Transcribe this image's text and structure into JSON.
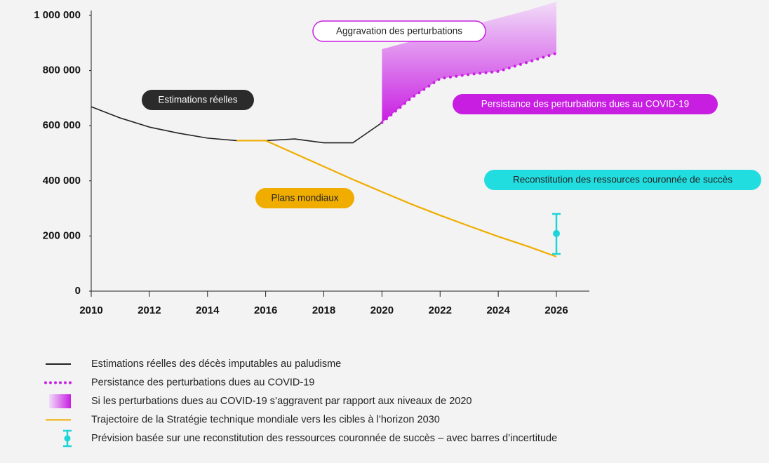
{
  "chart_data": {
    "type": "line",
    "x": [
      2010,
      2011,
      2012,
      2013,
      2014,
      2015,
      2016,
      2017,
      2018,
      2019,
      2020,
      2021,
      2022,
      2023,
      2024,
      2025,
      2026
    ],
    "xlim": [
      2010,
      2026
    ],
    "xticks": [
      2010,
      2012,
      2014,
      2016,
      2018,
      2020,
      2022,
      2024,
      2026
    ],
    "ylim": [
      0,
      1000000
    ],
    "yticks": [
      0,
      {
        "value": 200000,
        "label": "200 000"
      },
      {
        "value": 400000,
        "label": "400 000"
      },
      {
        "value": 600000,
        "label": "600 000"
      },
      {
        "value": 800000,
        "label": "800 000"
      },
      {
        "value": 1000000,
        "label": "1 000 000"
      }
    ],
    "series": [
      {
        "name": "Estimations réelles des décès imputables au paludisme",
        "style": "solid",
        "color": "#222222",
        "values": [
          669000,
          628000,
          595000,
          573000,
          555000,
          546000,
          546000,
          552000,
          538000,
          538000,
          611000,
          null,
          null,
          null,
          null,
          null,
          null
        ]
      },
      {
        "name": "Persistance des perturbations dues au COVID-19",
        "style": "dotted",
        "color": "#c81ee2",
        "values": [
          null,
          null,
          null,
          null,
          null,
          null,
          null,
          null,
          null,
          null,
          611000,
          700000,
          771000,
          786000,
          797000,
          830000,
          863000
        ]
      },
      {
        "name": "Si les perturbations dues au COVID-19 s’aggravent par rapport aux niveaux de 2020",
        "style": "band",
        "color": "#c81ee2",
        "values": [
          null,
          null,
          null,
          null,
          null,
          null,
          null,
          null,
          null,
          null,
          878000,
          906000,
          934000,
          962000,
          990000,
          1018000,
          1050000
        ]
      },
      {
        "name": "Trajectoire de la Stratégie technique mondiale vers les cibles à l’horizon 2030",
        "style": "solid",
        "color": "#f0ad00",
        "values": [
          null,
          null,
          null,
          null,
          null,
          546000,
          546000,
          499000,
          452000,
          405000,
          360000,
          316000,
          275000,
          236000,
          198000,
          163000,
          125000
        ]
      },
      {
        "name": "Prévision basée sur une reconstitution des ressources couronnée de succès – avec barres d’incertitude",
        "style": "errorbar",
        "color": "#1dd4d8",
        "values": [
          null,
          null,
          null,
          null,
          null,
          null,
          null,
          null,
          null,
          null,
          null,
          null,
          null,
          null,
          null,
          null,
          209000
        ],
        "low": [
          null,
          null,
          null,
          null,
          null,
          null,
          null,
          null,
          null,
          null,
          null,
          null,
          null,
          null,
          null,
          null,
          135000
        ],
        "high": [
          null,
          null,
          null,
          null,
          null,
          null,
          null,
          null,
          null,
          null,
          null,
          null,
          null,
          null,
          null,
          null,
          280000
        ]
      }
    ],
    "annotations": [
      "Estimations réelles",
      "Aggravation des perturbations",
      "Persistance des perturbations dues au COVID-19",
      "Plans mondiaux",
      "Reconstitution des ressources couronnée de succès"
    ]
  }
}
